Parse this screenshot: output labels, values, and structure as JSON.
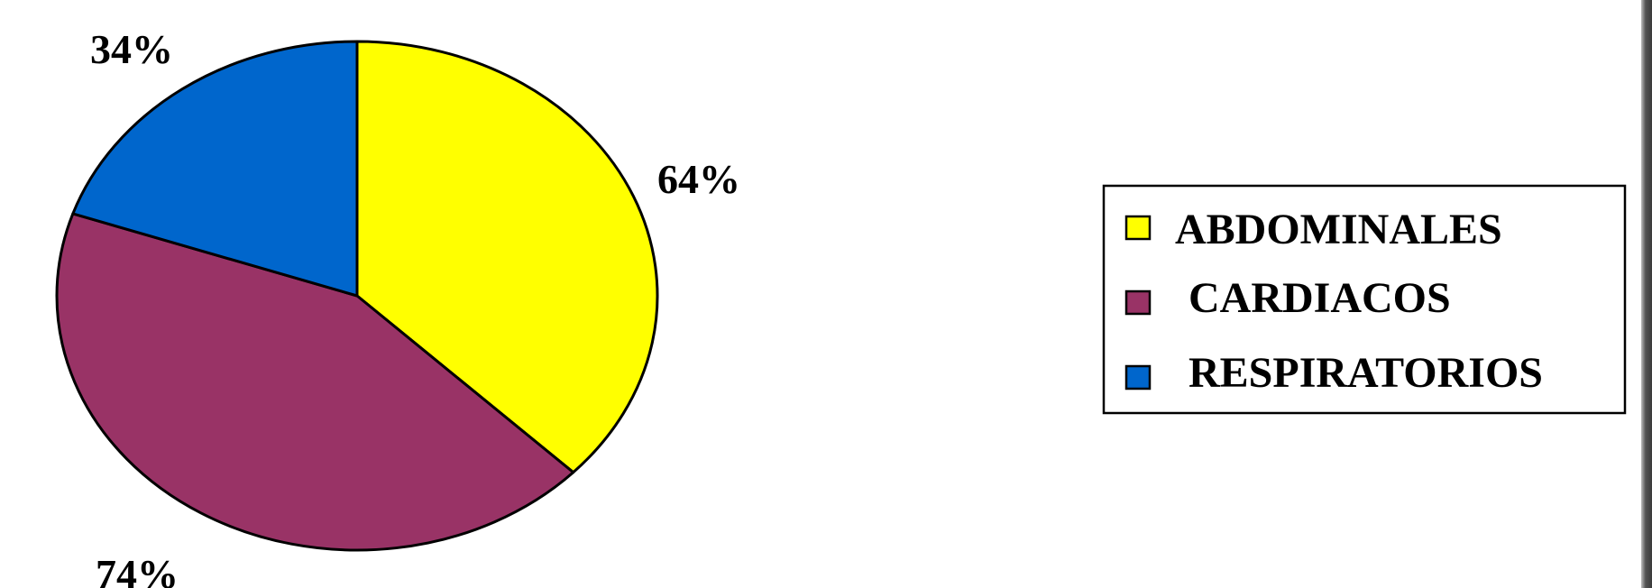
{
  "chart_data": {
    "type": "pie",
    "title": "",
    "categories": [
      "ABDOMINALES",
      "CARDIACOS",
      "RESPIRATORIOS"
    ],
    "values": [
      64,
      74,
      34
    ],
    "labels": [
      "64%",
      "74%",
      "34%"
    ],
    "colors": [
      "#FFFF00",
      "#993366",
      "#0066CC"
    ],
    "start_angle_deg": 0,
    "direction": "clockwise",
    "legend": {
      "position": "right",
      "items": [
        "ABDOMINALES",
        "CARDIACOS",
        "RESPIRATORIOS"
      ]
    }
  }
}
